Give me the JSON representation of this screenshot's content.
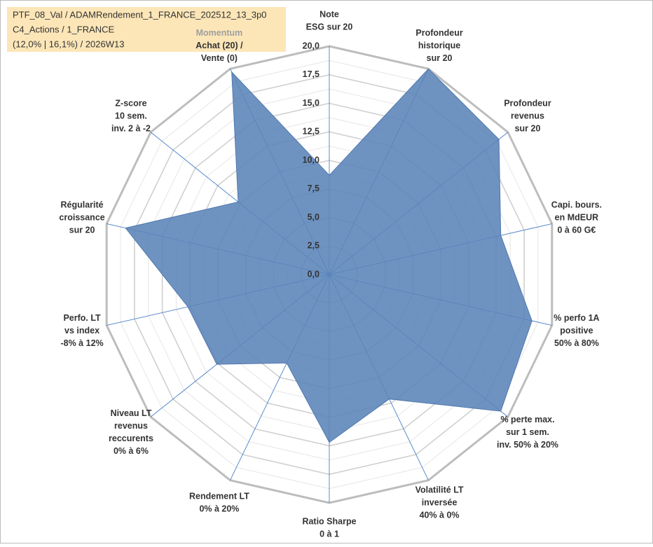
{
  "chart_data": {
    "type": "radar",
    "title_lines": [
      "PTF_08_Val / ADAMRendement_1_FRANCE_202512_13_3p0",
      "C4_Actions / 1_FRANCE",
      "(12,0% | 16,1%) / 2026W13"
    ],
    "categories": [
      [
        "Note",
        "ESG sur 20"
      ],
      [
        "Profondeur",
        "historique",
        "sur 20"
      ],
      [
        "Profondeur",
        "revenus",
        "sur 20"
      ],
      [
        "Capi. bours.",
        "en MdEUR",
        "0 à 60 G€"
      ],
      [
        "% perfo 1A",
        "positive",
        "50% à 80%"
      ],
      [
        "% perte max.",
        "sur 1 sem.",
        "inv. 50% à 20%"
      ],
      [
        "Volatilité LT",
        "inversée",
        "40% à 0%"
      ],
      [
        "Ratio Sharpe",
        "0 à 1"
      ],
      [
        "Rendement LT",
        "0% à 20%"
      ],
      [
        "Niveau LT",
        "revenus",
        "reccurents",
        "0% à 6%"
      ],
      [
        "Perfo. LT",
        "vs index",
        "-8% à 12%"
      ],
      [
        "Régularité",
        "croissance",
        "sur 20"
      ],
      [
        "Z-score",
        "10 sem.",
        "inv. 2 à -2"
      ],
      [
        "Momentum",
        "Achat (20) /",
        "Vente (0)"
      ]
    ],
    "series": [
      {
        "color": "#5b84b8",
        "values": [
          8.7,
          20,
          19,
          15.4,
          18.2,
          19.2,
          12.1,
          14.7,
          8.6,
          12.6,
          12.7,
          18.3,
          10.2,
          19.7
        ]
      }
    ],
    "ylim": [
      0,
      20
    ],
    "yticks": [
      {
        "value": 0,
        "label": "0,0"
      },
      {
        "value": 2.5,
        "label": "2,5"
      },
      {
        "value": 5,
        "label": "5,0"
      },
      {
        "value": 7.5,
        "label": "7,5"
      },
      {
        "value": 10,
        "label": "10,0"
      },
      {
        "value": 12.5,
        "label": "12,5"
      },
      {
        "value": 15,
        "label": "15,0"
      },
      {
        "value": 17.5,
        "label": "17,5"
      },
      {
        "value": 20,
        "label": "20,0"
      }
    ],
    "grid": true
  }
}
